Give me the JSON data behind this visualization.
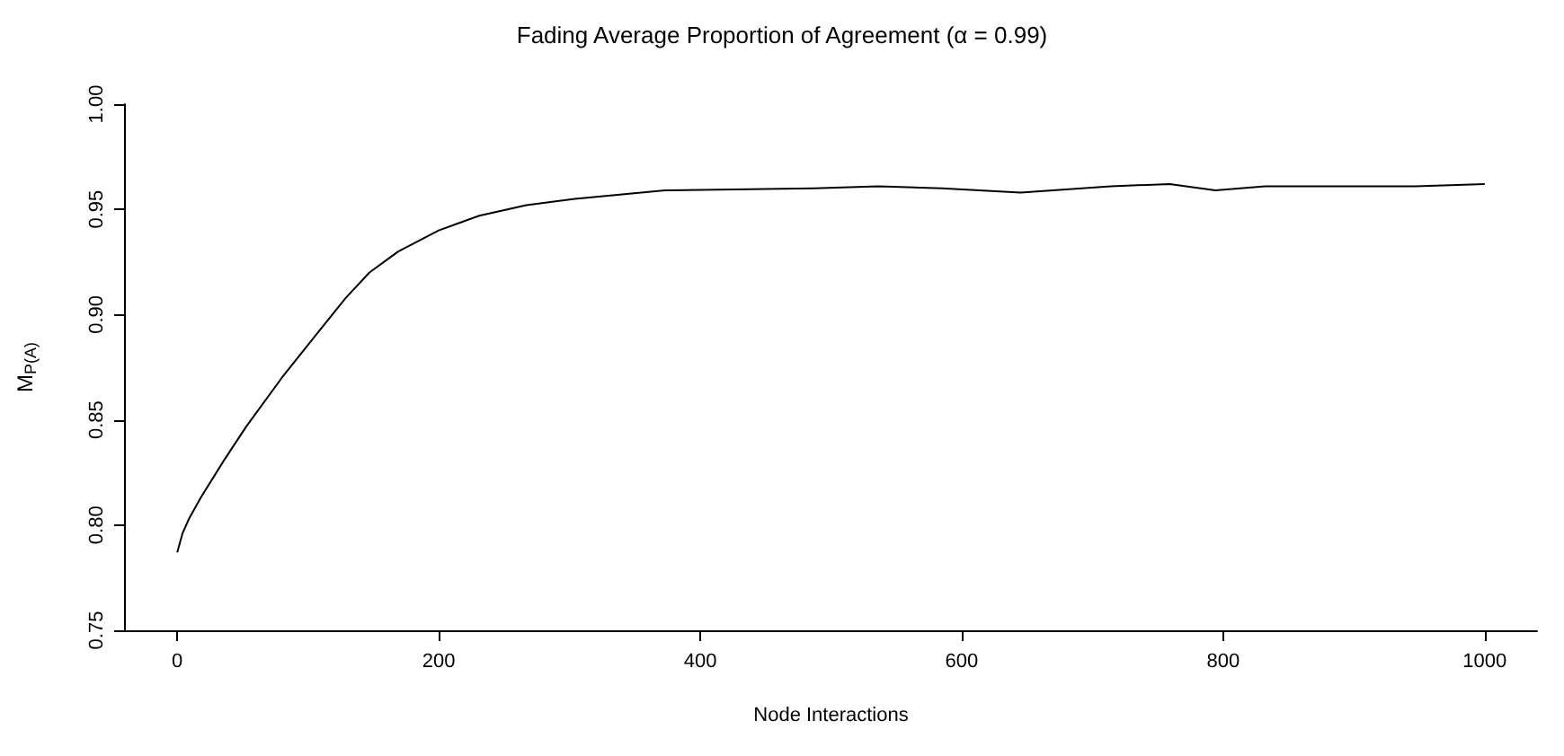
{
  "chart_data": {
    "type": "line",
    "title": "Fading Average Proportion of Agreement (α = 0.99)",
    "xlabel": "Node Interactions",
    "ylabel": "M$_{P(A)}$",
    "series": [
      {
        "color": "#000000",
        "x": [
          0,
          4,
          9,
          18,
          36,
          53,
          80,
          107,
          129,
          147,
          169,
          200,
          231,
          267,
          304,
          373,
          487,
          536,
          585,
          645,
          714,
          759,
          794,
          832,
          881,
          947,
          1000
        ],
        "values": [
          0.787,
          0.796,
          0.803,
          0.813,
          0.831,
          0.847,
          0.87,
          0.891,
          0.908,
          0.92,
          0.93,
          0.94,
          0.947,
          0.952,
          0.955,
          0.959,
          0.96,
          0.961,
          0.96,
          0.958,
          0.961,
          0.962,
          0.959,
          0.961,
          0.961,
          0.961,
          0.962
        ]
      }
    ],
    "xlim": [
      -40,
      1040
    ],
    "xticks": [
      0,
      200,
      400,
      600,
      800,
      1000
    ],
    "ylim": [
      0.75,
      1.0
    ],
    "yticks": [
      0.75,
      {
        "value": 0.8,
        "label": "0.80"
      },
      0.85,
      {
        "value": 0.9,
        "label": "0.90"
      },
      0.95,
      {
        "value": 1.0,
        "label": "1.00"
      }
    ],
    "grid": false,
    "marker": "none",
    "line_style": "solid"
  }
}
